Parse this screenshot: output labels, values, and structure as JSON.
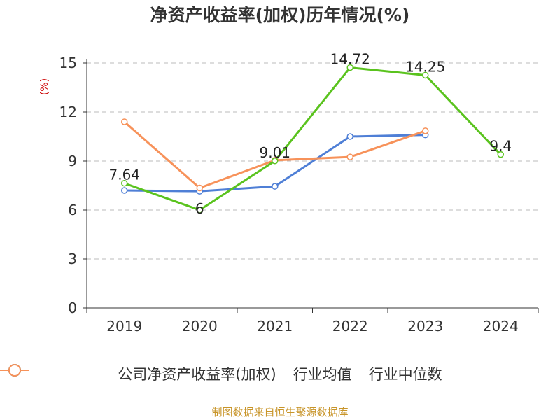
{
  "chart_data": {
    "type": "line",
    "title": "净资产收益率(加权)历年情况(%)",
    "ylabel": "(%)",
    "xlabel": "",
    "categories": [
      "2019",
      "2020",
      "2021",
      "2022",
      "2023",
      "2024"
    ],
    "ylim": [
      0,
      15
    ],
    "yticks": [
      0,
      3,
      6,
      9,
      12,
      15
    ],
    "grid": true,
    "legend_position": "bottom",
    "series": [
      {
        "name": "公司净资产收益率(加权)",
        "color": "#5ac31e",
        "values": [
          7.64,
          6,
          9.01,
          14.72,
          14.25,
          9.4
        ],
        "labels": [
          "7.64",
          "6",
          "9.01",
          "14.72",
          "14.25",
          "9.4"
        ]
      },
      {
        "name": "行业均值",
        "color": "#4f7fd6",
        "values": [
          7.2,
          7.15,
          7.45,
          10.5,
          10.6,
          null
        ]
      },
      {
        "name": "行业中位数",
        "color": "#f7925a",
        "values": [
          11.4,
          7.35,
          9.05,
          9.25,
          10.85,
          null
        ]
      }
    ]
  },
  "source": "制图数据来自恒生聚源数据库"
}
